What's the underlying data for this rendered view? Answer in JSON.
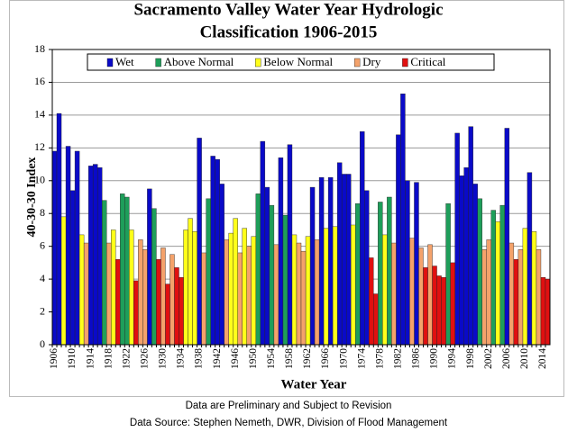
{
  "chart_data": {
    "type": "bar",
    "title": [
      "Sacramento Valley Water Year Hydrologic",
      "Classification 1906-2015"
    ],
    "ylabel": "40-30-30 Index",
    "xlabel": "Water Year",
    "notes": [
      "Data are Preliminary and Subject to Revision",
      "Data Source:  Stephen Nemeth, DWR, Division of Flood Management"
    ],
    "ylim": [
      0,
      18
    ],
    "yticks": [
      0,
      2,
      4,
      6,
      8,
      10,
      12,
      14,
      16,
      18
    ],
    "grid": true,
    "legend": "top",
    "categories": [
      "1906",
      null,
      null,
      null,
      "1910",
      null,
      null,
      null,
      "1914",
      null,
      null,
      null,
      "1918",
      null,
      null,
      null,
      "1922",
      null,
      null,
      null,
      "1926",
      null,
      null,
      null,
      "1930",
      null,
      null,
      null,
      "1934",
      null,
      null,
      null,
      "1938",
      null,
      null,
      null,
      "1942",
      null,
      null,
      null,
      "1946",
      null,
      null,
      null,
      "1950",
      null,
      null,
      null,
      "1954",
      null,
      null,
      null,
      "1958",
      null,
      null,
      null,
      "1962",
      null,
      null,
      null,
      "1966",
      null,
      null,
      null,
      "1970",
      null,
      null,
      null,
      "1974",
      null,
      null,
      null,
      "1978",
      null,
      null,
      null,
      "1982",
      null,
      null,
      null,
      "1986",
      null,
      null,
      null,
      "1990",
      null,
      null,
      null,
      "1994",
      null,
      null,
      null,
      "1998",
      null,
      null,
      null,
      "2002",
      null,
      null,
      null,
      "2006",
      null,
      null,
      null,
      "2010",
      null,
      null,
      null,
      "2014",
      null
    ],
    "series": [
      {
        "name": "Wet",
        "color": "#0a0ac8",
        "values": [
          11.8,
          14.1,
          null,
          12.1,
          9.4,
          11.8,
          null,
          null,
          10.9,
          11.0,
          10.8,
          null,
          null,
          null,
          null,
          null,
          null,
          null,
          null,
          null,
          null,
          9.5,
          null,
          null,
          null,
          null,
          null,
          null,
          null,
          null,
          null,
          null,
          12.6,
          null,
          null,
          11.5,
          11.3,
          9.8,
          null,
          null,
          null,
          null,
          null,
          null,
          null,
          null,
          12.4,
          9.6,
          null,
          null,
          11.4,
          null,
          12.2,
          null,
          null,
          null,
          null,
          9.6,
          null,
          10.2,
          null,
          10.2,
          null,
          11.1,
          10.4,
          10.4,
          null,
          null,
          13.0,
          9.4,
          null,
          null,
          null,
          null,
          null,
          null,
          12.8,
          15.3,
          10.0,
          null,
          9.9,
          null,
          null,
          null,
          null,
          null,
          null,
          null,
          null,
          12.9,
          10.3,
          10.8,
          13.3,
          9.8,
          null,
          null,
          null,
          null,
          null,
          null,
          13.2,
          null,
          null,
          null,
          null,
          10.5,
          null,
          null,
          null,
          null
        ]
      },
      {
        "name": "Above Normal",
        "color": "#1e9e5a",
        "values": [
          null,
          null,
          null,
          null,
          null,
          null,
          null,
          null,
          null,
          null,
          null,
          8.8,
          null,
          null,
          null,
          9.2,
          9.0,
          null,
          null,
          null,
          null,
          null,
          8.3,
          null,
          null,
          null,
          null,
          null,
          null,
          null,
          null,
          null,
          null,
          null,
          8.9,
          null,
          null,
          null,
          null,
          null,
          null,
          null,
          null,
          null,
          null,
          9.2,
          null,
          null,
          8.5,
          null,
          null,
          7.9,
          null,
          null,
          null,
          null,
          null,
          null,
          null,
          null,
          null,
          null,
          null,
          null,
          null,
          null,
          null,
          8.6,
          null,
          null,
          null,
          null,
          8.7,
          null,
          9.0,
          null,
          null,
          null,
          null,
          null,
          null,
          null,
          null,
          null,
          null,
          null,
          null,
          8.6,
          null,
          null,
          null,
          null,
          null,
          null,
          8.9,
          null,
          null,
          8.2,
          null,
          8.5,
          null,
          null,
          null,
          null,
          null,
          null,
          null,
          null,
          null,
          null
        ]
      },
      {
        "name": "Below Normal",
        "color": "#ffff1a",
        "values": [
          null,
          null,
          7.8,
          null,
          null,
          null,
          6.7,
          null,
          null,
          null,
          null,
          null,
          null,
          7.0,
          null,
          null,
          null,
          7.0,
          null,
          null,
          null,
          null,
          null,
          null,
          null,
          null,
          null,
          null,
          null,
          7.0,
          7.7,
          6.9,
          null,
          null,
          null,
          null,
          null,
          null,
          null,
          6.8,
          7.7,
          null,
          7.1,
          null,
          6.6,
          null,
          null,
          null,
          null,
          null,
          null,
          null,
          null,
          6.7,
          null,
          null,
          6.6,
          null,
          null,
          null,
          7.1,
          null,
          7.2,
          null,
          null,
          null,
          7.3,
          null,
          null,
          null,
          null,
          null,
          null,
          6.7,
          null,
          null,
          null,
          null,
          null,
          null,
          null,
          null,
          null,
          null,
          null,
          null,
          null,
          null,
          null,
          null,
          null,
          null,
          null,
          null,
          null,
          null,
          null,
          null,
          7.5,
          null,
          null,
          null,
          null,
          null,
          7.1,
          null,
          6.9,
          null,
          null,
          null
        ]
      },
      {
        "name": "Dry",
        "color": "#f4a26b",
        "values": [
          null,
          null,
          null,
          null,
          null,
          null,
          null,
          6.2,
          null,
          null,
          null,
          null,
          6.2,
          null,
          null,
          null,
          null,
          null,
          null,
          6.4,
          5.8,
          null,
          null,
          null,
          5.9,
          null,
          5.5,
          null,
          null,
          null,
          null,
          null,
          null,
          5.6,
          null,
          null,
          null,
          null,
          6.4,
          null,
          null,
          5.6,
          null,
          6.0,
          null,
          null,
          null,
          null,
          null,
          6.1,
          null,
          null,
          null,
          null,
          6.2,
          5.7,
          null,
          null,
          6.4,
          null,
          null,
          null,
          null,
          null,
          null,
          null,
          null,
          null,
          null,
          null,
          null,
          null,
          null,
          null,
          null,
          6.2,
          null,
          null,
          null,
          6.5,
          null,
          5.9,
          null,
          6.1,
          null,
          null,
          null,
          null,
          null,
          null,
          null,
          null,
          null,
          null,
          null,
          5.8,
          6.4,
          null,
          null,
          null,
          null,
          6.2,
          null,
          5.8,
          null,
          null,
          null,
          5.8,
          null,
          null
        ]
      },
      {
        "name": "Critical",
        "color": "#e01010",
        "values": [
          null,
          null,
          null,
          null,
          null,
          null,
          null,
          null,
          null,
          null,
          null,
          null,
          null,
          null,
          5.2,
          null,
          null,
          null,
          3.9,
          null,
          null,
          null,
          null,
          5.2,
          null,
          3.7,
          null,
          4.7,
          4.1,
          null,
          null,
          null,
          null,
          null,
          null,
          null,
          null,
          null,
          null,
          null,
          null,
          null,
          null,
          null,
          null,
          null,
          null,
          null,
          null,
          null,
          null,
          null,
          null,
          null,
          null,
          null,
          null,
          null,
          null,
          null,
          null,
          null,
          null,
          null,
          null,
          null,
          null,
          null,
          null,
          null,
          5.3,
          3.1,
          null,
          null,
          null,
          null,
          null,
          null,
          null,
          null,
          null,
          null,
          4.7,
          null,
          4.8,
          4.2,
          4.1,
          null,
          5.0,
          null,
          null,
          null,
          null,
          null,
          null,
          null,
          null,
          null,
          null,
          null,
          null,
          null,
          5.2,
          null,
          null,
          null,
          null,
          null,
          4.1,
          4.0
        ]
      }
    ]
  }
}
